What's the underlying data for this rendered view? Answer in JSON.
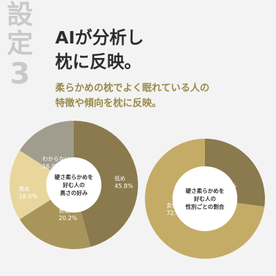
{
  "side_label": {
    "chars": [
      "設",
      "定"
    ],
    "number": "3"
  },
  "headline": {
    "line1": "AIが分析し",
    "line2": "枕に反映。"
  },
  "subheadline": {
    "line1": "柔らかめの枕でよく眠れている人の",
    "line2": "特徴や傾向を枕に反映。"
  },
  "colors": {
    "background": "#f3f3f3",
    "side_label": "#c9c9c9",
    "headline": "#2e2e2e",
    "subheadline": "#9a8a4d"
  },
  "chart_data": [
    {
      "type": "pie",
      "center_label": [
        "硬さ柔らかめを",
        "好む人の",
        "高さの好み"
      ],
      "slices": [
        {
          "label": "低め",
          "value": 45.8,
          "value_text": "45.8%",
          "color": "#8a7a4e",
          "text_color": "#ffffff"
        },
        {
          "label": "普通",
          "value": 20.2,
          "value_text": "20.2%",
          "color": "#a8955a",
          "text_color": "#ffffff"
        },
        {
          "label": "高め",
          "value": 18.0,
          "value_text": "18.0%",
          "color": "#e8d69c",
          "text_color": "#ffffff"
        },
        {
          "label": "わからない",
          "value": 16.0,
          "value_text": "16.0%",
          "color": "#a09d8e",
          "text_color": "#ffffff"
        }
      ]
    },
    {
      "type": "pie",
      "center_label": [
        "硬さ柔らかめを",
        "好む人の",
        "性別ごとの割合"
      ],
      "slices": [
        {
          "label": "男性",
          "value": 27.1,
          "value_text": "27.1%",
          "color": "#8a7a4e",
          "text_color": "#ffffff"
        },
        {
          "label": "女性",
          "value": 72.9,
          "value_text": "72.9%",
          "color": "#c4ac66",
          "text_color": "#ffffff"
        }
      ]
    }
  ]
}
